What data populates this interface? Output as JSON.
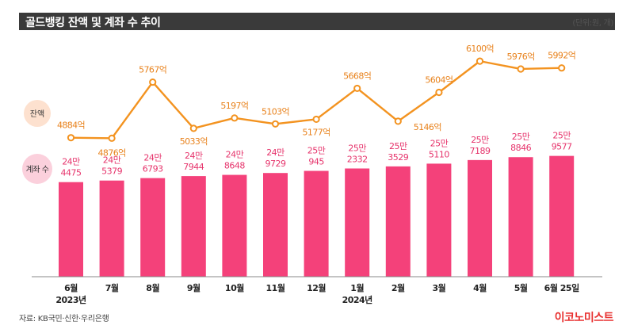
{
  "header": {
    "title": "골드뱅킹 잔액 및 계좌 수 추이",
    "unit": "(단위:원, 개)"
  },
  "footer": {
    "source": "자료: KB국민·신한·우리은행",
    "logo": "이코노미스트"
  },
  "colors": {
    "bar": "#f4417a",
    "line": "#f39320",
    "bar_label": "#e6336b",
    "line_label": "#e8821c"
  },
  "chart_data": [
    {
      "type": "line",
      "legend_label": "잔액",
      "categories": [
        "6월",
        "7월",
        "8월",
        "9월",
        "10월",
        "11월",
        "12월",
        "1월",
        "2월",
        "3월",
        "4월",
        "5월",
        "6월 25일"
      ],
      "year_labels": [
        "2023년",
        "2024년"
      ],
      "values": [
        4884,
        4876,
        5767,
        5033,
        5197,
        5103,
        5177,
        5668,
        5146,
        5604,
        6100,
        5976,
        5992
      ],
      "labels": [
        "4884억",
        "4876억",
        "5767억",
        "5033억",
        "5197억",
        "5103억",
        "5177억",
        "5668억",
        "5146억",
        "5604억",
        "6100억",
        "5976억",
        "5992억"
      ]
    },
    {
      "type": "bar",
      "legend_label": "계좌 수",
      "categories": [
        "6월",
        "7월",
        "8월",
        "9월",
        "10월",
        "11월",
        "12월",
        "1월",
        "2월",
        "3월",
        "4월",
        "5월",
        "6월 25일"
      ],
      "values": [
        244475,
        245379,
        246793,
        247944,
        248648,
        249729,
        250945,
        252332,
        253529,
        255110,
        257189,
        258846,
        259577
      ],
      "labels_top": [
        "24만",
        "24만",
        "24만",
        "24만",
        "24만",
        "24만",
        "25만",
        "25만",
        "25만",
        "25만",
        "25만",
        "25만",
        "25만"
      ],
      "labels_bottom": [
        "4475",
        "5379",
        "6793",
        "7944",
        "8648",
        "9729",
        "945",
        "2332",
        "3529",
        "5110",
        "7189",
        "8846",
        "9577"
      ]
    }
  ]
}
